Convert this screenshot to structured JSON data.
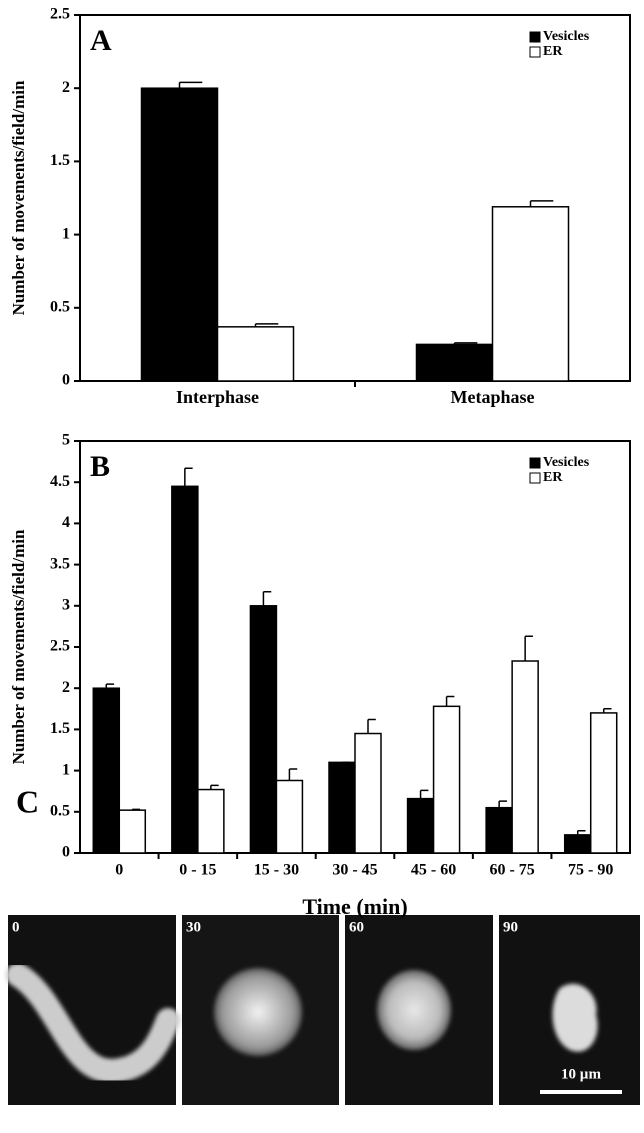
{
  "chart_data": [
    {
      "type": "bar",
      "panel_label": "A",
      "ylabel": "Number of movements/field/min",
      "categories": [
        "Interphase",
        "Metaphase"
      ],
      "series": [
        {
          "name": "Vesicles",
          "color": "#000000",
          "values": [
            2.0,
            0.25
          ],
          "errors": [
            0.04,
            0.01
          ]
        },
        {
          "name": "ER",
          "color": "#ffffff",
          "values": [
            0.37,
            1.19
          ],
          "errors": [
            0.02,
            0.04
          ]
        }
      ],
      "ylim": [
        0,
        2.5
      ],
      "yticks": [
        0,
        0.5,
        1,
        1.5,
        2,
        2.5
      ],
      "legend": "upper right"
    },
    {
      "type": "bar",
      "panel_label": "B",
      "ylabel": "Number of movements/field/min",
      "xlabel": "Time (min)",
      "categories": [
        "0",
        "0 - 15",
        "15 - 30",
        "30 - 45",
        "45 - 60",
        "60 - 75",
        "75 - 90"
      ],
      "series": [
        {
          "name": "Vesicles",
          "color": "#000000",
          "values": [
            2.0,
            4.45,
            3.0,
            1.1,
            0.66,
            0.55,
            0.22
          ],
          "errors": [
            0.05,
            0.22,
            0.17,
            0,
            0.1,
            0.08,
            0.05
          ]
        },
        {
          "name": "ER",
          "color": "#ffffff",
          "values": [
            0.52,
            0.77,
            0.88,
            1.45,
            1.78,
            2.33,
            1.7
          ],
          "errors": [
            0.01,
            0.05,
            0.14,
            0.17,
            0.12,
            0.3,
            0.05
          ]
        }
      ],
      "ylim": [
        0,
        5
      ],
      "yticks": [
        0,
        0.5,
        1,
        1.5,
        2,
        2.5,
        3,
        3.5,
        4,
        4.5,
        5
      ],
      "legend": "upper right"
    }
  ],
  "panel_c": {
    "label": "C",
    "frames": [
      "0",
      "30",
      "60",
      "90"
    ],
    "scale_bar": "10 µm"
  }
}
